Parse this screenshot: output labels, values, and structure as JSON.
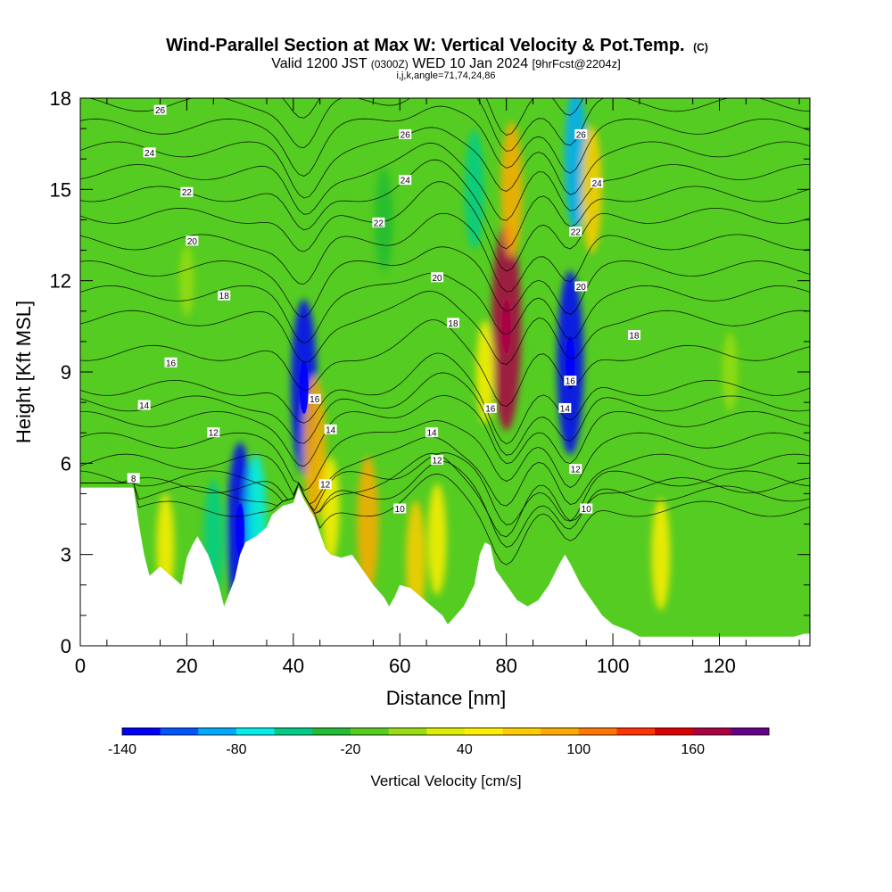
{
  "header": {
    "title_main": "Wind-Parallel Section at Max W: Vertical Velocity & Pot.Temp.",
    "title_mark": "(C)",
    "valid_a": "Valid 1200 JST",
    "valid_b": "(0300Z)",
    "valid_c": "WED 10 Jan 2024",
    "valid_d": "[9hrFcst@2204z]",
    "grid_info": "i,j,k,angle=71,74,24,86"
  },
  "colorbar": {
    "label": "Vertical Velocity [cm/s]",
    "bounds": [
      -140,
      -120,
      -100,
      -80,
      -60,
      -40,
      -20,
      0,
      20,
      40,
      60,
      80,
      100,
      120,
      140,
      160,
      180,
      200
    ],
    "colors": [
      "#0000ff",
      "#0055ff",
      "#00aaff",
      "#00eeee",
      "#00cc88",
      "#22bb33",
      "#55cc22",
      "#99dd11",
      "#ddee00",
      "#ffee00",
      "#ffcc00",
      "#ffaa00",
      "#ff7700",
      "#ff3300",
      "#dd0000",
      "#aa0044",
      "#660088"
    ],
    "tick_labels": [
      "-140",
      "-80",
      "-20",
      "40",
      "100",
      "160"
    ],
    "tick_values": [
      -140,
      -80,
      -20,
      40,
      100,
      160
    ]
  },
  "chart_data": {
    "type": "heatmap",
    "title": "Wind-Parallel Section at Max W: Vertical Velocity & Pot.Temp.",
    "xlabel": "Distance [nm]",
    "ylabel": "Height [Kft MSL]",
    "xlim": [
      0,
      137
    ],
    "ylim": [
      0,
      18
    ],
    "x_ticks": [
      0,
      20,
      40,
      60,
      80,
      100,
      120
    ],
    "y_ticks": [
      0,
      3,
      6,
      9,
      12,
      15,
      18
    ],
    "x_tick_labels": [
      "0",
      "20",
      "40",
      "60",
      "80",
      "100",
      "120"
    ],
    "y_tick_labels": [
      "0",
      "3",
      "6",
      "9",
      "12",
      "15",
      "18"
    ],
    "velocity_units": "cm/s",
    "velocity_features": [
      {
        "x": 42,
        "y": 8.5,
        "value": -130
      },
      {
        "x": 44,
        "y": 6.5,
        "value": 90
      },
      {
        "x": 47,
        "y": 4.5,
        "value": 40
      },
      {
        "x": 54,
        "y": 4.0,
        "value": 80
      },
      {
        "x": 63,
        "y": 2.8,
        "value": 60
      },
      {
        "x": 67,
        "y": 3.5,
        "value": 50
      },
      {
        "x": 74,
        "y": 15,
        "value": -60
      },
      {
        "x": 80,
        "y": 10.5,
        "value": 170
      },
      {
        "x": 81,
        "y": 15,
        "value": 80
      },
      {
        "x": 76,
        "y": 9,
        "value": 40
      },
      {
        "x": 92,
        "y": 9.3,
        "value": -140
      },
      {
        "x": 93,
        "y": 16,
        "value": -90
      },
      {
        "x": 96,
        "y": 15,
        "value": 70
      },
      {
        "x": 30,
        "y": 3.8,
        "value": -130
      },
      {
        "x": 33,
        "y": 4.2,
        "value": -70
      },
      {
        "x": 25,
        "y": 3.5,
        "value": -60
      },
      {
        "x": 16,
        "y": 3.3,
        "value": 40
      },
      {
        "x": 109,
        "y": 3.0,
        "value": 50
      },
      {
        "x": 57,
        "y": 14,
        "value": -40
      },
      {
        "x": 122,
        "y": 9,
        "value": 10
      },
      {
        "x": 20,
        "y": 12,
        "value": 0
      },
      {
        "x": 8,
        "y": 6,
        "value": -20
      }
    ],
    "terrain": [
      [
        0,
        5.2
      ],
      [
        3,
        5.2
      ],
      [
        8,
        5.2
      ],
      [
        10,
        5.2
      ],
      [
        11,
        4.0
      ],
      [
        12,
        3.0
      ],
      [
        13,
        2.3
      ],
      [
        15,
        2.6
      ],
      [
        17,
        2.3
      ],
      [
        19,
        2.0
      ],
      [
        20,
        2.9
      ],
      [
        21,
        3.3
      ],
      [
        22,
        3.6
      ],
      [
        24,
        3.0
      ],
      [
        25,
        2.5
      ],
      [
        26,
        2.0
      ],
      [
        27,
        1.3
      ],
      [
        29,
        2.2
      ],
      [
        30,
        3.0
      ],
      [
        31,
        3.4
      ],
      [
        33,
        3.6
      ],
      [
        35,
        3.9
      ],
      [
        36,
        4.3
      ],
      [
        38,
        4.6
      ],
      [
        40,
        4.7
      ],
      [
        41,
        5.2
      ],
      [
        42,
        4.8
      ],
      [
        44,
        4.2
      ],
      [
        46,
        3.2
      ],
      [
        47,
        3.0
      ],
      [
        49,
        2.9
      ],
      [
        51,
        3.0
      ],
      [
        53,
        2.5
      ],
      [
        55,
        2.0
      ],
      [
        57,
        1.6
      ],
      [
        58,
        1.3
      ],
      [
        59,
        1.6
      ],
      [
        60,
        2.0
      ],
      [
        62,
        1.9
      ],
      [
        64,
        1.6
      ],
      [
        66,
        1.3
      ],
      [
        68,
        1.0
      ],
      [
        69,
        0.7
      ],
      [
        70,
        0.9
      ],
      [
        72,
        1.3
      ],
      [
        74,
        2.0
      ],
      [
        75,
        3.0
      ],
      [
        76,
        3.4
      ],
      [
        77,
        3.3
      ],
      [
        78,
        2.5
      ],
      [
        80,
        2.0
      ],
      [
        82,
        1.5
      ],
      [
        84,
        1.3
      ],
      [
        86,
        1.5
      ],
      [
        88,
        2.0
      ],
      [
        90,
        2.7
      ],
      [
        91,
        3.0
      ],
      [
        92,
        2.7
      ],
      [
        94,
        2.0
      ],
      [
        96,
        1.5
      ],
      [
        98,
        1.0
      ],
      [
        100,
        0.7
      ],
      [
        103,
        0.5
      ],
      [
        105,
        0.3
      ],
      [
        120,
        0.3
      ],
      [
        134,
        0.3
      ],
      [
        136,
        0.4
      ],
      [
        137,
        0.4
      ]
    ],
    "theta_labels": [
      {
        "label": "26",
        "x": 15,
        "y": 17.6
      },
      {
        "label": "24",
        "x": 13,
        "y": 16.2
      },
      {
        "label": "22",
        "x": 20,
        "y": 14.9
      },
      {
        "label": "20",
        "x": 21,
        "y": 13.3
      },
      {
        "label": "18",
        "x": 27,
        "y": 11.5
      },
      {
        "label": "16",
        "x": 17,
        "y": 9.3
      },
      {
        "label": "14",
        "x": 12,
        "y": 7.9
      },
      {
        "label": "12",
        "x": 25,
        "y": 7.0
      },
      {
        "label": "8",
        "x": 10,
        "y": 5.5
      },
      {
        "label": "26",
        "x": 61,
        "y": 16.8
      },
      {
        "label": "24",
        "x": 61,
        "y": 15.3
      },
      {
        "label": "22",
        "x": 56,
        "y": 13.9
      },
      {
        "label": "20",
        "x": 67,
        "y": 12.1
      },
      {
        "label": "18",
        "x": 70,
        "y": 10.6
      },
      {
        "label": "16",
        "x": 44,
        "y": 8.1
      },
      {
        "label": "14",
        "x": 47,
        "y": 7.1
      },
      {
        "label": "14",
        "x": 66,
        "y": 7.0
      },
      {
        "label": "12",
        "x": 67,
        "y": 6.1
      },
      {
        "label": "12",
        "x": 46,
        "y": 5.3
      },
      {
        "label": "10",
        "x": 60,
        "y": 4.5
      },
      {
        "label": "16",
        "x": 77,
        "y": 7.8
      },
      {
        "label": "26",
        "x": 94,
        "y": 16.8
      },
      {
        "label": "24",
        "x": 97,
        "y": 15.2
      },
      {
        "label": "22",
        "x": 93,
        "y": 13.6
      },
      {
        "label": "20",
        "x": 94,
        "y": 11.8
      },
      {
        "label": "18",
        "x": 104,
        "y": 10.2
      },
      {
        "label": "16",
        "x": 92,
        "y": 8.7
      },
      {
        "label": "14",
        "x": 91,
        "y": 7.8
      },
      {
        "label": "12",
        "x": 93,
        "y": 5.8
      },
      {
        "label": "10",
        "x": 95,
        "y": 4.5
      }
    ]
  }
}
